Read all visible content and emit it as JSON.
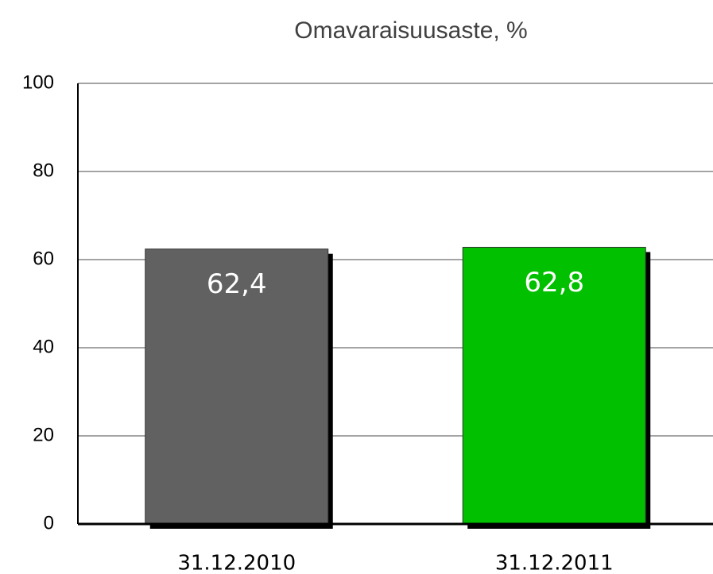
{
  "chart_data": {
    "type": "bar",
    "title": "Omavaraisuusaste, %",
    "categories": [
      "31.12.2010",
      "31.12.2011"
    ],
    "values": [
      62.4,
      62.8
    ],
    "value_labels": [
      "62,4",
      "62,8"
    ],
    "colors": [
      "#616161",
      "#00c000"
    ],
    "ylim": [
      0,
      100
    ],
    "yticks": [
      0,
      20,
      40,
      60,
      80,
      100
    ],
    "grid": true
  }
}
